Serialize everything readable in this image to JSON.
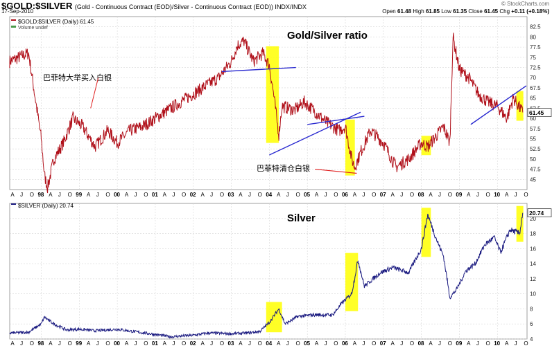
{
  "header": {
    "symbol": "$GOLD:$SILVER",
    "description": "(Gold - Continuous Contract (EOD)/Silver - Continuous Contract (EOD)) INDX/INDX",
    "date": "17-Sep-2010",
    "watermark": "© StockCharts.com",
    "open_label": "Open",
    "open": "61.48",
    "high_label": "High",
    "high": "61.85",
    "low_label": "Low",
    "low": "61.35",
    "close_label": "Close",
    "close": "61.45",
    "chg_label": "Chg",
    "chg": "+0.11 (+0.18%)"
  },
  "chart_data": [
    {
      "type": "line",
      "title": "Gold/Silver ratio",
      "legend_entries": [
        "$GOLD:$SILVER (Daily) 61.45",
        "Volume undef"
      ],
      "last_value_label": "61.45",
      "ylim": [
        42.5,
        85
      ],
      "yticks": [
        45,
        47.5,
        50,
        52.5,
        55,
        57.5,
        60,
        62.5,
        65,
        67.5,
        70,
        72.5,
        75,
        77.5,
        80,
        82.5
      ],
      "annotations": [
        "巴菲特大举买入白银",
        "巴菲特清仓白银"
      ],
      "series": [
        {
          "color": "#b0101a",
          "x": [
            "1997-03",
            "1997-06",
            "1997-09",
            "1998-01",
            "1998-02",
            "1998-03",
            "1998-05",
            "1998-08",
            "1998-11",
            "1999-02",
            "1999-06",
            "1999-10",
            "2000-01",
            "2000-05",
            "2000-09",
            "2001-01",
            "2001-05",
            "2001-09",
            "2002-01",
            "2002-05",
            "2002-09",
            "2003-01",
            "2003-03",
            "2003-05",
            "2003-08",
            "2003-11",
            "2004-01",
            "2004-02",
            "2004-04",
            "2004-05",
            "2004-09",
            "2004-12",
            "2005-03",
            "2005-07",
            "2005-11",
            "2006-01",
            "2006-03",
            "2006-04",
            "2006-06",
            "2006-09",
            "2007-01",
            "2007-05",
            "2007-09",
            "2008-01",
            "2008-03",
            "2008-06",
            "2008-08",
            "2008-10",
            "2008-11",
            "2009-01",
            "2009-04",
            "2009-07",
            "2009-10",
            "2010-01",
            "2010-04",
            "2010-06",
            "2010-09"
          ],
          "values": [
            74,
            75,
            76,
            55,
            46,
            43,
            50,
            54,
            60,
            58,
            53,
            57,
            54,
            57,
            58,
            60,
            62,
            64,
            66,
            68,
            70,
            74,
            78,
            79,
            74,
            76,
            73,
            68,
            56,
            63,
            62,
            64,
            62,
            59,
            57,
            58,
            50,
            48,
            52,
            57,
            54,
            48,
            50,
            54,
            53,
            56,
            58,
            54,
            80,
            72,
            70,
            66,
            64,
            63,
            60,
            65,
            61.45
          ]
        }
      ],
      "highlights": [
        "2003-12 to 2004-04",
        "2006-01 to 2006-04",
        "2008-01 to 2008-04",
        "2010-07 to 2010-09"
      ]
    },
    {
      "type": "line",
      "title": "Silver",
      "legend_entries": [
        "$SILVER (Daily) 20.74"
      ],
      "last_value_label": "20.74",
      "ylim": [
        4,
        22
      ],
      "yticks": [
        4,
        6,
        8,
        10,
        12,
        14,
        16,
        18,
        20
      ],
      "series": [
        {
          "color": "#1a1a80",
          "x": [
            "1997-03",
            "1997-09",
            "1998-01",
            "1998-02",
            "1998-05",
            "1998-09",
            "1999-01",
            "1999-06",
            "2000-01",
            "2000-06",
            "2001-01",
            "2001-06",
            "2002-01",
            "2002-06",
            "2003-01",
            "2003-06",
            "2003-10",
            "2004-01",
            "2004-04",
            "2004-06",
            "2004-10",
            "2005-03",
            "2005-09",
            "2005-12",
            "2006-03",
            "2006-05",
            "2006-07",
            "2006-12",
            "2007-04",
            "2007-09",
            "2008-01",
            "2008-03",
            "2008-06",
            "2008-08",
            "2008-10",
            "2008-12",
            "2009-03",
            "2009-06",
            "2009-09",
            "2009-12",
            "2010-02",
            "2010-05",
            "2010-08",
            "2010-09"
          ],
          "values": [
            4.8,
            4.9,
            6.0,
            6.9,
            6.0,
            5.2,
            5.3,
            5.1,
            5.3,
            5.0,
            4.6,
            4.3,
            4.5,
            4.8,
            4.7,
            4.8,
            5.0,
            6.2,
            8.0,
            6.0,
            7.0,
            7.2,
            7.2,
            8.8,
            10.0,
            14.5,
            11.0,
            12.8,
            13.5,
            12.8,
            16.0,
            20.5,
            17.0,
            15.0,
            9.5,
            10.5,
            13.0,
            14.0,
            16.5,
            17.5,
            15.5,
            18.5,
            18.0,
            20.74
          ]
        }
      ],
      "highlights": [
        "2003-12 to 2004-05",
        "2006-01 to 2006-05",
        "2008-01 to 2008-04",
        "2010-07 to 2010-09"
      ]
    }
  ],
  "time_axis": {
    "top_labels": [
      "A",
      "J",
      "O",
      "98",
      "A",
      "J",
      "O",
      "99",
      "A",
      "J",
      "O",
      "00",
      "A",
      "J",
      "O",
      "01",
      "A",
      "J",
      "O",
      "02",
      "A",
      "J",
      "O",
      "03",
      "A",
      "J",
      "O",
      "04",
      "A",
      "J",
      "O",
      "05",
      "A",
      "J",
      "O",
      "06",
      "A",
      "J",
      "O",
      "07",
      "A",
      "J",
      "O",
      "08",
      "A",
      "J",
      "O",
      "09",
      "A",
      "J",
      "O",
      "10",
      "A",
      "J",
      "O"
    ],
    "bottom_labels": [
      "A",
      "J",
      "O",
      "98",
      "A",
      "J",
      "O",
      "99",
      "A",
      "J",
      "O",
      "00",
      "A",
      "J",
      "O",
      "01",
      "A",
      "J",
      "O",
      "02",
      "A",
      "J",
      "O",
      "03",
      "A",
      "J",
      "O",
      "04",
      "A",
      "J",
      "O",
      "05",
      "A",
      "J",
      "O",
      "06",
      "A",
      "J",
      "O",
      "07",
      "A",
      "J",
      "O",
      "08",
      "A",
      "J",
      "O",
      "09",
      "A",
      "J",
      "O",
      "10",
      "A",
      "J",
      "O"
    ]
  },
  "colors": {
    "ratio_line": "#b0101a",
    "silver_line": "#1a1a80",
    "highlight": "#ffff00",
    "trendline": "#2a2ad0",
    "annotation_arrow": "#e02020"
  }
}
